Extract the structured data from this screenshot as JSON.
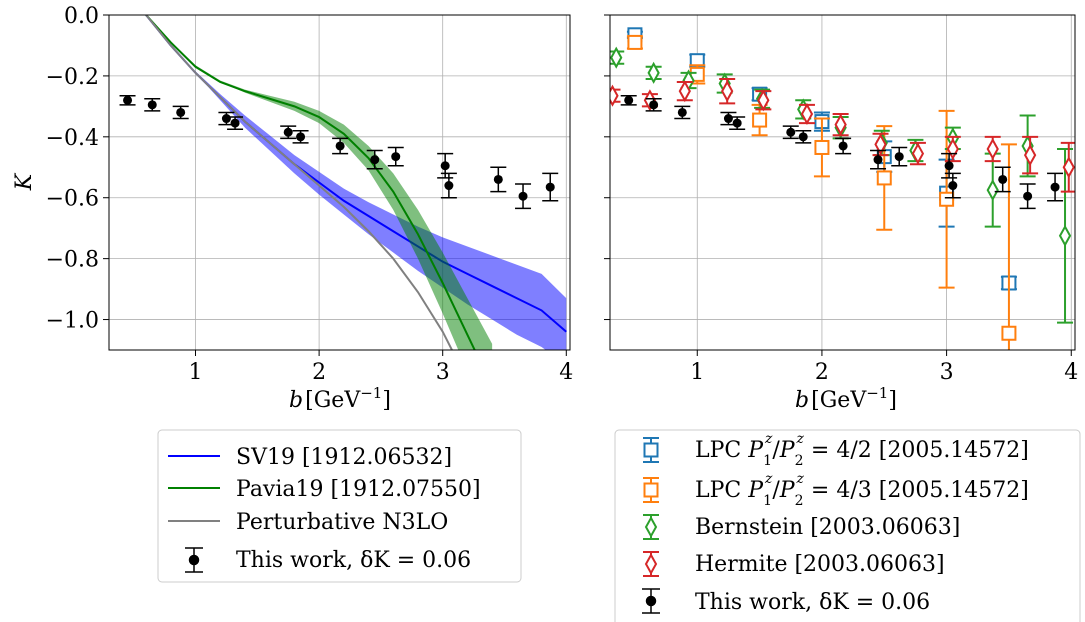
{
  "chart_data": [
    {
      "type": "line",
      "panel": "left",
      "ylabel": "K",
      "xlabel": "b [GeV⁻¹]",
      "xlabel_main": "b",
      "xlabel_unit": "[GeV",
      "xlabel_sup": "−1",
      "xlabel_close": "]",
      "xlim": [
        0.3,
        4.03
      ],
      "ylim": [
        -1.1,
        0.0
      ],
      "grid": true,
      "xticks": [
        1,
        2,
        3,
        4
      ],
      "xtick_labels": [
        "1",
        "2",
        "3",
        "4"
      ],
      "yticks": [
        0.0,
        -0.2,
        -0.4,
        -0.6,
        -0.8,
        -1.0
      ],
      "ytick_labels": [
        "0.0",
        "−0.2",
        "−0.4",
        "−0.6",
        "−0.8",
        "−1.0"
      ],
      "legend_position": "bottom",
      "series": [
        {
          "name": "SV19 [1912.06532]",
          "kind": "band",
          "color": "#0000ff",
          "x": [
            0.6,
            0.8,
            1.0,
            1.2,
            1.4,
            1.6,
            1.8,
            2.0,
            2.2,
            2.4,
            2.6,
            2.8,
            3.0,
            3.2,
            3.4,
            3.6,
            3.8,
            4.0
          ],
          "y": [
            0.0,
            -0.1,
            -0.19,
            -0.27,
            -0.35,
            -0.42,
            -0.49,
            -0.55,
            -0.61,
            -0.66,
            -0.71,
            -0.76,
            -0.81,
            -0.85,
            -0.89,
            -0.93,
            -0.97,
            -1.04
          ],
          "y_low": [
            0.0,
            -0.1,
            -0.19,
            -0.28,
            -0.37,
            -0.445,
            -0.52,
            -0.59,
            -0.655,
            -0.72,
            -0.78,
            -0.84,
            -0.895,
            -0.95,
            -1.0,
            -1.05,
            -1.09,
            -1.15
          ],
          "y_high": [
            0.0,
            -0.1,
            -0.185,
            -0.26,
            -0.33,
            -0.395,
            -0.46,
            -0.515,
            -0.57,
            -0.615,
            -0.655,
            -0.695,
            -0.73,
            -0.76,
            -0.79,
            -0.82,
            -0.85,
            -0.93
          ]
        },
        {
          "name": "Pavia19 [1912.07550]",
          "kind": "band",
          "color": "#008000",
          "x": [
            0.6,
            0.8,
            1.0,
            1.2,
            1.4,
            1.6,
            1.8,
            2.0,
            2.2,
            2.4,
            2.6,
            2.8,
            3.0,
            3.2,
            3.4
          ],
          "y": [
            0.0,
            -0.09,
            -0.17,
            -0.22,
            -0.25,
            -0.275,
            -0.3,
            -0.335,
            -0.39,
            -0.47,
            -0.58,
            -0.72,
            -0.88,
            -1.05,
            -1.22
          ],
          "y_low": [
            0.0,
            -0.09,
            -0.17,
            -0.22,
            -0.255,
            -0.285,
            -0.315,
            -0.355,
            -0.42,
            -0.51,
            -0.64,
            -0.8,
            -0.98,
            -1.17,
            -1.36
          ],
          "y_high": [
            0.0,
            -0.09,
            -0.165,
            -0.215,
            -0.245,
            -0.265,
            -0.285,
            -0.315,
            -0.36,
            -0.43,
            -0.52,
            -0.64,
            -0.78,
            -0.93,
            -1.08
          ]
        },
        {
          "name": "Perturbative N3LO",
          "kind": "line",
          "color": "#808080",
          "x": [
            0.6,
            0.8,
            1.0,
            1.2,
            1.4,
            1.6,
            1.8,
            2.0,
            2.2,
            2.4,
            2.6,
            2.8,
            3.0,
            3.1
          ],
          "y": [
            0.0,
            -0.1,
            -0.19,
            -0.27,
            -0.35,
            -0.42,
            -0.49,
            -0.56,
            -0.63,
            -0.71,
            -0.8,
            -0.91,
            -1.04,
            -1.12
          ]
        },
        {
          "name": "This work, δK = 0.06",
          "kind": "errorbar",
          "color": "#000000",
          "x": [
            0.45,
            0.65,
            0.88,
            1.25,
            1.32,
            1.75,
            1.85,
            2.17,
            2.45,
            2.62,
            3.02,
            3.05,
            3.45,
            3.65,
            3.87
          ],
          "y": [
            -0.28,
            -0.295,
            -0.32,
            -0.34,
            -0.355,
            -0.385,
            -0.4,
            -0.43,
            -0.475,
            -0.465,
            -0.495,
            -0.56,
            -0.54,
            -0.595,
            -0.565
          ],
          "yerr": [
            0.015,
            0.02,
            0.02,
            0.02,
            0.02,
            0.02,
            0.02,
            0.025,
            0.03,
            0.03,
            0.04,
            0.04,
            0.04,
            0.04,
            0.045
          ]
        }
      ]
    },
    {
      "type": "scatter",
      "panel": "right",
      "xlabel": "b [GeV⁻¹]",
      "xlabel_main": "b",
      "xlabel_unit": "[GeV",
      "xlabel_sup": "−1",
      "xlabel_close": "]",
      "xlim": [
        0.3,
        4.03
      ],
      "ylim": [
        -1.1,
        0.0
      ],
      "grid": true,
      "xticks": [
        1,
        2,
        3,
        4
      ],
      "xtick_labels": [
        "1",
        "2",
        "3",
        "4"
      ],
      "legend_position": "bottom",
      "series": [
        {
          "name": "LPC P₁ᶻ/P₂ᶻ = 4/2 [2005.14572]",
          "label_pre": "LPC ",
          "label_post": " = 4/2 [2005.14572]",
          "marker": "square",
          "color": "#1f77b4",
          "x": [
            0.5,
            1.0,
            1.5,
            2.0,
            2.5,
            3.0,
            3.5
          ],
          "y": [
            -0.065,
            -0.15,
            -0.26,
            -0.35,
            -0.465,
            -0.585,
            -0.88
          ],
          "yerr": [
            0.01,
            0.02,
            0.02,
            0.03,
            0.05,
            0.11,
            0.02
          ]
        },
        {
          "name": "LPC P₁ᶻ/P₂ᶻ = 4/3 [2005.14572]",
          "label_pre": "LPC ",
          "label_post": " = 4/3 [2005.14572]",
          "marker": "square",
          "color": "#ff7f0e",
          "x": [
            0.5,
            1.0,
            1.5,
            2.0,
            2.5,
            3.0,
            3.5
          ],
          "y": [
            -0.09,
            -0.195,
            -0.345,
            -0.435,
            -0.535,
            -0.605,
            -1.045
          ],
          "yerr": [
            0.02,
            0.03,
            0.05,
            0.095,
            0.17,
            0.29,
            0.62
          ]
        },
        {
          "name": "Bernstein [2003.06063]",
          "marker": "diamond",
          "color": "#2ca02c",
          "x": [
            0.35,
            0.65,
            0.93,
            1.22,
            1.52,
            1.85,
            2.15,
            2.48,
            2.75,
            3.05,
            3.37,
            3.65,
            3.95
          ],
          "y": [
            -0.14,
            -0.19,
            -0.215,
            -0.225,
            -0.275,
            -0.31,
            -0.37,
            -0.42,
            -0.445,
            -0.405,
            -0.575,
            -0.43,
            -0.725
          ],
          "yerr": [
            0.02,
            0.02,
            0.025,
            0.03,
            0.03,
            0.03,
            0.035,
            0.04,
            0.035,
            0.035,
            0.12,
            0.1,
            0.285
          ]
        },
        {
          "name": "Hermite [2003.06063]",
          "marker": "diamond",
          "color": "#d62728",
          "x": [
            0.32,
            0.62,
            0.9,
            1.24,
            1.53,
            1.88,
            2.15,
            2.47,
            2.77,
            3.05,
            3.37,
            3.67,
            3.98
          ],
          "y": [
            -0.265,
            -0.28,
            -0.25,
            -0.25,
            -0.28,
            -0.325,
            -0.36,
            -0.425,
            -0.455,
            -0.44,
            -0.44,
            -0.46,
            -0.5
          ],
          "yerr": [
            0.02,
            0.02,
            0.03,
            0.04,
            0.03,
            0.03,
            0.035,
            0.035,
            0.035,
            0.04,
            0.04,
            0.06,
            0.08
          ]
        },
        {
          "name": "This work, δK = 0.06",
          "marker": "circle",
          "color": "#000000",
          "x": [
            0.45,
            0.65,
            0.88,
            1.25,
            1.32,
            1.75,
            1.85,
            2.17,
            2.45,
            2.62,
            3.02,
            3.05,
            3.45,
            3.65,
            3.87
          ],
          "y": [
            -0.28,
            -0.295,
            -0.32,
            -0.34,
            -0.355,
            -0.385,
            -0.4,
            -0.43,
            -0.475,
            -0.465,
            -0.495,
            -0.56,
            -0.54,
            -0.595,
            -0.565
          ],
          "yerr": [
            0.015,
            0.02,
            0.02,
            0.02,
            0.02,
            0.02,
            0.02,
            0.025,
            0.03,
            0.03,
            0.04,
            0.04,
            0.04,
            0.04,
            0.045
          ]
        }
      ]
    }
  ]
}
